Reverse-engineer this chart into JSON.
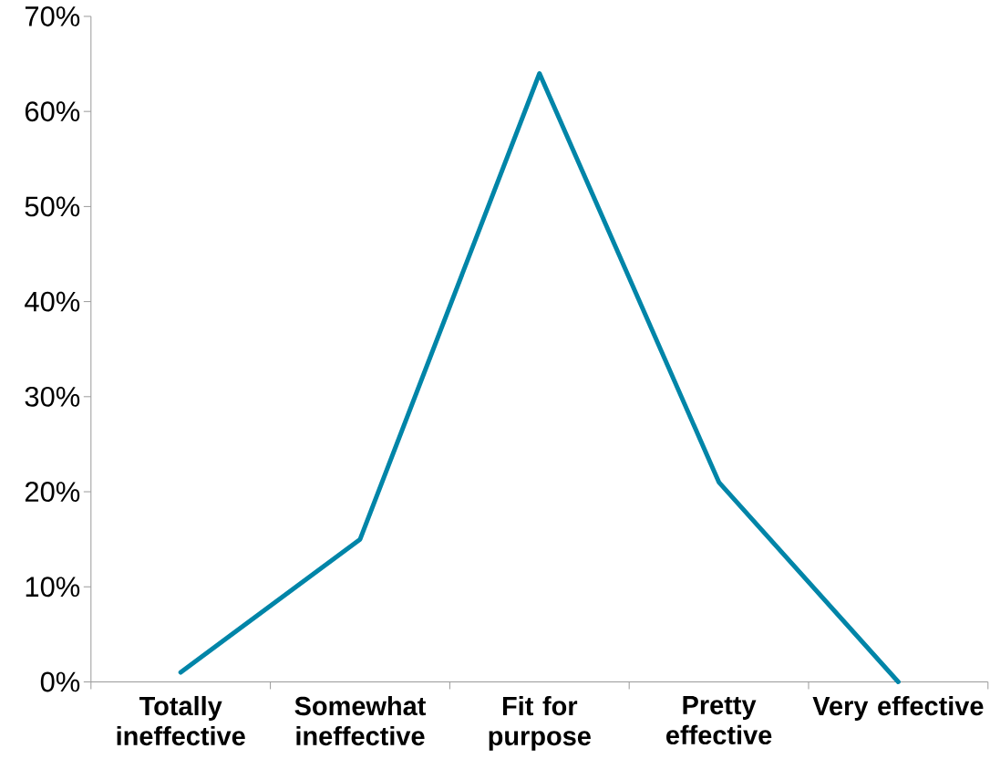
{
  "chart_data": {
    "type": "line",
    "categories": [
      "Totally ineffective",
      "Somewhat ineffective",
      "Fit for purpose",
      "Pretty effective",
      "Very effective"
    ],
    "values": [
      1,
      15,
      64,
      21,
      0
    ],
    "color": "#0085a8",
    "ylim": [
      0,
      70
    ],
    "yticks": [
      {
        "value": 0,
        "label": "0%"
      },
      {
        "value": 10,
        "label": "10%"
      },
      {
        "value": 20,
        "label": "20%"
      },
      {
        "value": 30,
        "label": "30%"
      },
      {
        "value": 40,
        "label": "40%"
      },
      {
        "value": 50,
        "label": "50%"
      },
      {
        "value": 60,
        "label": "60%"
      },
      {
        "value": 70,
        "label": "70%"
      }
    ],
    "grid": false
  }
}
